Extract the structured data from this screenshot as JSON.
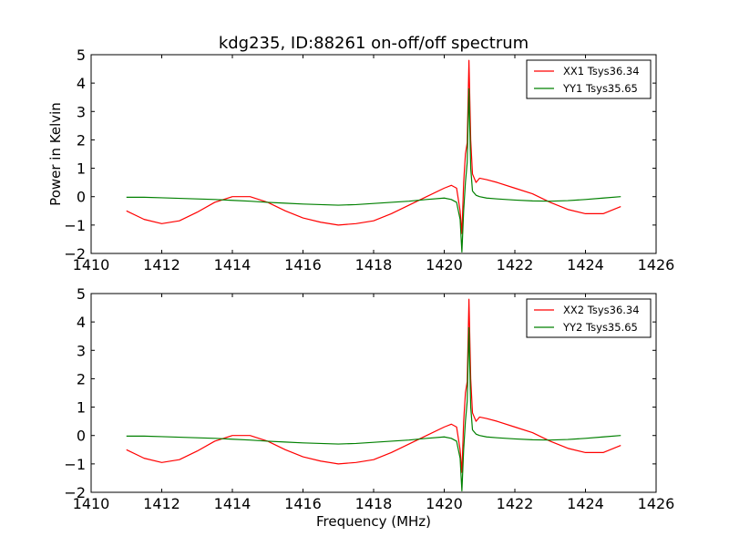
{
  "title": "kdg235, ID:88261 on-off/off spectrum",
  "chart_data": [
    {
      "type": "line",
      "xlabel": "",
      "ylabel": "Power in Kelvin",
      "xlim": [
        1410,
        1426
      ],
      "ylim": [
        -2,
        5
      ],
      "xticks": [
        1410,
        1412,
        1414,
        1416,
        1418,
        1420,
        1422,
        1424,
        1426
      ],
      "yticks": [
        -2,
        -1,
        0,
        1,
        2,
        3,
        4,
        5
      ],
      "xtick_labels": [
        "1410",
        "1412",
        "1414",
        "1416",
        "1418",
        "1420",
        "1422",
        "1424",
        "1426"
      ],
      "ytick_labels": [
        "−2",
        "−1",
        "0",
        "1",
        "2",
        "3",
        "4",
        "5"
      ],
      "legend_position": "top-right",
      "grid": false,
      "series": [
        {
          "name": "XX1 Tsys36.34",
          "color": "#ff0000",
          "x": [
            1411.0,
            1411.5,
            1412.0,
            1412.5,
            1413.0,
            1413.5,
            1414.0,
            1414.5,
            1415.0,
            1415.5,
            1416.0,
            1416.5,
            1417.0,
            1417.5,
            1418.0,
            1418.5,
            1419.0,
            1419.5,
            1420.0,
            1420.2,
            1420.35,
            1420.45,
            1420.5,
            1420.55,
            1420.6,
            1420.65,
            1420.7,
            1420.75,
            1420.8,
            1420.9,
            1421.0,
            1421.2,
            1421.5,
            1422.0,
            1422.5,
            1423.0,
            1423.5,
            1424.0,
            1424.5,
            1425.0
          ],
          "y": [
            -0.5,
            -0.8,
            -0.95,
            -0.85,
            -0.55,
            -0.2,
            0.0,
            0.0,
            -0.2,
            -0.5,
            -0.75,
            -0.9,
            -1.0,
            -0.95,
            -0.85,
            -0.6,
            -0.3,
            0.0,
            0.3,
            0.4,
            0.3,
            -0.5,
            -1.3,
            0.5,
            1.5,
            1.9,
            4.8,
            2.0,
            0.8,
            0.5,
            0.65,
            0.6,
            0.5,
            0.3,
            0.1,
            -0.2,
            -0.45,
            -0.6,
            -0.6,
            -0.35
          ]
        },
        {
          "name": "YY1 Tsys35.65",
          "color": "#008000",
          "x": [
            1411.0,
            1411.5,
            1412.0,
            1412.5,
            1413.0,
            1413.5,
            1414.0,
            1414.5,
            1415.0,
            1415.5,
            1416.0,
            1416.5,
            1417.0,
            1417.5,
            1418.0,
            1418.5,
            1419.0,
            1419.5,
            1420.0,
            1420.2,
            1420.35,
            1420.45,
            1420.5,
            1420.55,
            1420.6,
            1420.65,
            1420.7,
            1420.75,
            1420.8,
            1420.9,
            1421.0,
            1421.2,
            1421.5,
            1422.0,
            1422.5,
            1423.0,
            1423.5,
            1424.0,
            1424.5,
            1425.0
          ],
          "y": [
            -0.02,
            -0.02,
            -0.04,
            -0.06,
            -0.08,
            -0.1,
            -0.13,
            -0.16,
            -0.2,
            -0.23,
            -0.26,
            -0.28,
            -0.3,
            -0.28,
            -0.24,
            -0.2,
            -0.16,
            -0.1,
            -0.05,
            -0.1,
            -0.2,
            -0.8,
            -1.95,
            -0.5,
            0.5,
            1.2,
            3.8,
            1.0,
            0.2,
            0.05,
            0.0,
            -0.05,
            -0.08,
            -0.12,
            -0.15,
            -0.16,
            -0.14,
            -0.1,
            -0.05,
            0.0
          ]
        }
      ]
    },
    {
      "type": "line",
      "xlabel": "Frequency (MHz)",
      "ylabel": "",
      "xlim": [
        1410,
        1426
      ],
      "ylim": [
        -2,
        5
      ],
      "xticks": [
        1410,
        1412,
        1414,
        1416,
        1418,
        1420,
        1422,
        1424,
        1426
      ],
      "yticks": [
        -2,
        -1,
        0,
        1,
        2,
        3,
        4,
        5
      ],
      "xtick_labels": [
        "1410",
        "1412",
        "1414",
        "1416",
        "1418",
        "1420",
        "1422",
        "1424",
        "1426"
      ],
      "ytick_labels": [
        "−2",
        "−1",
        "0",
        "1",
        "2",
        "3",
        "4",
        "5"
      ],
      "legend_position": "top-right",
      "grid": false,
      "series": [
        {
          "name": "XX2 Tsys36.34",
          "color": "#ff0000",
          "x": [
            1411.0,
            1411.5,
            1412.0,
            1412.5,
            1413.0,
            1413.5,
            1414.0,
            1414.5,
            1415.0,
            1415.5,
            1416.0,
            1416.5,
            1417.0,
            1417.5,
            1418.0,
            1418.5,
            1419.0,
            1419.5,
            1420.0,
            1420.2,
            1420.35,
            1420.45,
            1420.5,
            1420.55,
            1420.6,
            1420.65,
            1420.7,
            1420.75,
            1420.8,
            1420.9,
            1421.0,
            1421.2,
            1421.5,
            1422.0,
            1422.5,
            1423.0,
            1423.5,
            1424.0,
            1424.5,
            1425.0
          ],
          "y": [
            -0.5,
            -0.8,
            -0.95,
            -0.85,
            -0.55,
            -0.2,
            0.0,
            0.0,
            -0.2,
            -0.5,
            -0.75,
            -0.9,
            -1.0,
            -0.95,
            -0.85,
            -0.6,
            -0.3,
            0.0,
            0.3,
            0.4,
            0.3,
            -0.5,
            -1.3,
            0.5,
            1.5,
            1.9,
            4.8,
            2.0,
            0.8,
            0.5,
            0.65,
            0.6,
            0.5,
            0.3,
            0.1,
            -0.2,
            -0.45,
            -0.6,
            -0.6,
            -0.35
          ]
        },
        {
          "name": "YY2 Tsys35.65",
          "color": "#008000",
          "x": [
            1411.0,
            1411.5,
            1412.0,
            1412.5,
            1413.0,
            1413.5,
            1414.0,
            1414.5,
            1415.0,
            1415.5,
            1416.0,
            1416.5,
            1417.0,
            1417.5,
            1418.0,
            1418.5,
            1419.0,
            1419.5,
            1420.0,
            1420.2,
            1420.35,
            1420.45,
            1420.5,
            1420.55,
            1420.6,
            1420.65,
            1420.7,
            1420.75,
            1420.8,
            1420.9,
            1421.0,
            1421.2,
            1421.5,
            1422.0,
            1422.5,
            1423.0,
            1423.5,
            1424.0,
            1424.5,
            1425.0
          ],
          "y": [
            -0.02,
            -0.02,
            -0.04,
            -0.06,
            -0.08,
            -0.1,
            -0.13,
            -0.16,
            -0.2,
            -0.23,
            -0.26,
            -0.28,
            -0.3,
            -0.28,
            -0.24,
            -0.2,
            -0.16,
            -0.1,
            -0.05,
            -0.1,
            -0.2,
            -0.8,
            -1.95,
            -0.5,
            0.5,
            1.2,
            3.8,
            1.0,
            0.2,
            0.05,
            0.0,
            -0.05,
            -0.08,
            -0.12,
            -0.15,
            -0.16,
            -0.14,
            -0.1,
            -0.05,
            0.0
          ]
        }
      ]
    }
  ]
}
